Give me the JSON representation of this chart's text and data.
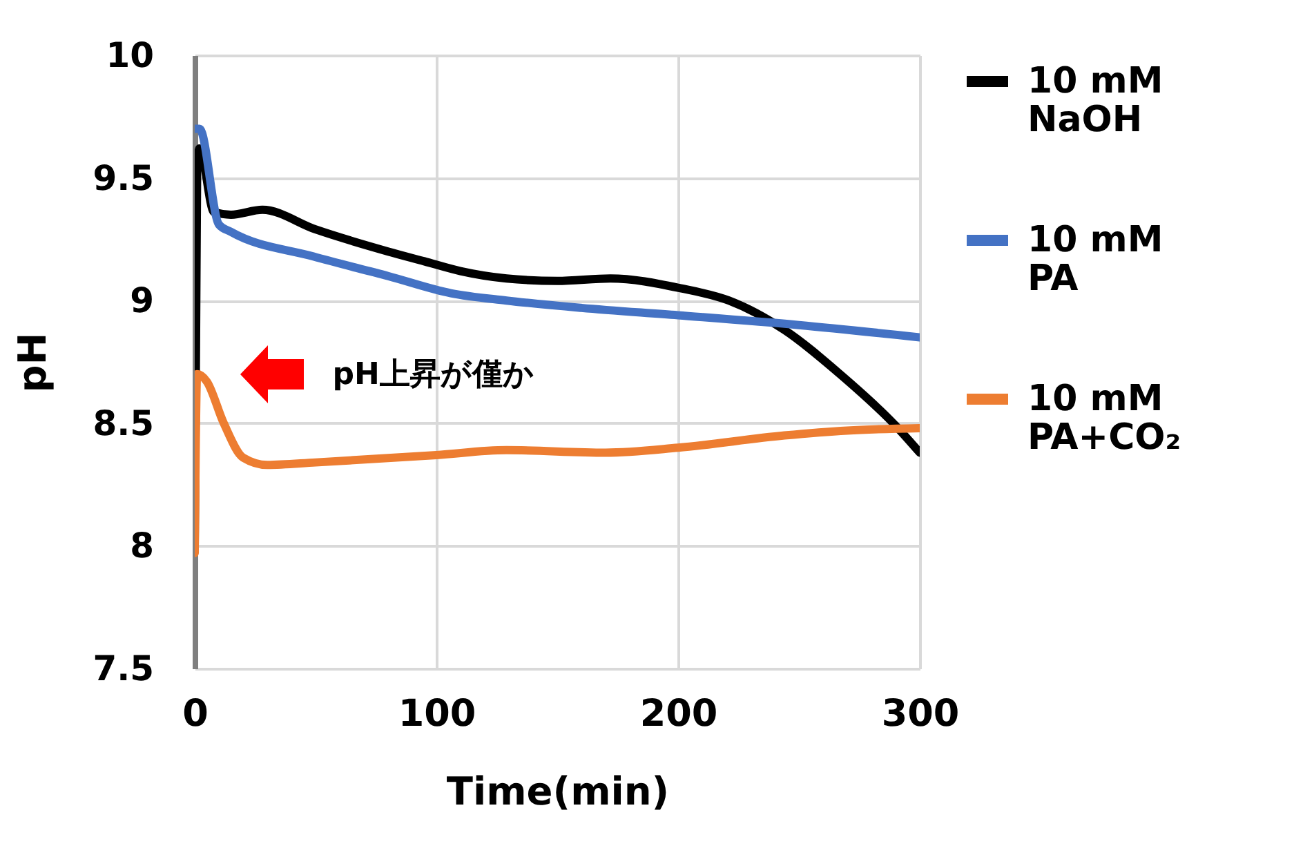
{
  "chart_data": {
    "type": "line",
    "xlabel": "Time(min)",
    "ylabel": "pH",
    "xlim": [
      0,
      300
    ],
    "ylim": [
      7.5,
      10
    ],
    "xticks": [
      0,
      100,
      200,
      300
    ],
    "yticks": [
      7.5,
      8,
      8.5,
      9,
      9.5,
      10
    ],
    "grid": true,
    "legend": "right",
    "annotations": [
      "pH上昇が僅か"
    ],
    "series": [
      {
        "name": "10 mM NaOH",
        "color": "#000000",
        "x": [
          0,
          1,
          2,
          8,
          15,
          28,
          50,
          80,
          95,
          110,
          129,
          150,
          172,
          201,
          221,
          244,
          267,
          290,
          300
        ],
        "values": [
          8.0,
          9.55,
          9.62,
          9.36,
          9.35,
          9.37,
          9.29,
          9.2,
          9.16,
          9.12,
          9.09,
          9.08,
          9.09,
          9.05,
          9.0,
          8.88,
          8.7,
          8.49,
          8.38
        ]
      },
      {
        "name": "10 mM PA",
        "color": "#4472c4",
        "x": [
          0,
          2,
          10,
          15,
          49,
          80,
          106,
          129,
          160,
          200,
          250,
          300
        ],
        "values": [
          9.7,
          9.7,
          9.31,
          9.28,
          9.18,
          9.1,
          9.03,
          9.0,
          8.97,
          8.94,
          8.9,
          8.85
        ]
      },
      {
        "name": "10 mM PA+CO₂",
        "color": "#ed7d31",
        "x": [
          0,
          1,
          5,
          12,
          20,
          30,
          50,
          100,
          129,
          170,
          200,
          244,
          270,
          300
        ],
        "values": [
          7.97,
          8.7,
          8.67,
          8.5,
          8.36,
          8.33,
          8.34,
          8.37,
          8.39,
          8.38,
          8.4,
          8.45,
          8.47,
          8.48
        ]
      }
    ]
  }
}
